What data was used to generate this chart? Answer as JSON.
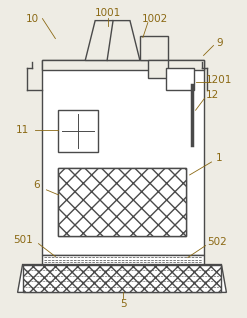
{
  "bg_color": "#eeece4",
  "line_color": "#4a4a4a",
  "label_color": "#8B6914",
  "fig_width": 2.47,
  "fig_height": 3.18,
  "dpi": 100
}
